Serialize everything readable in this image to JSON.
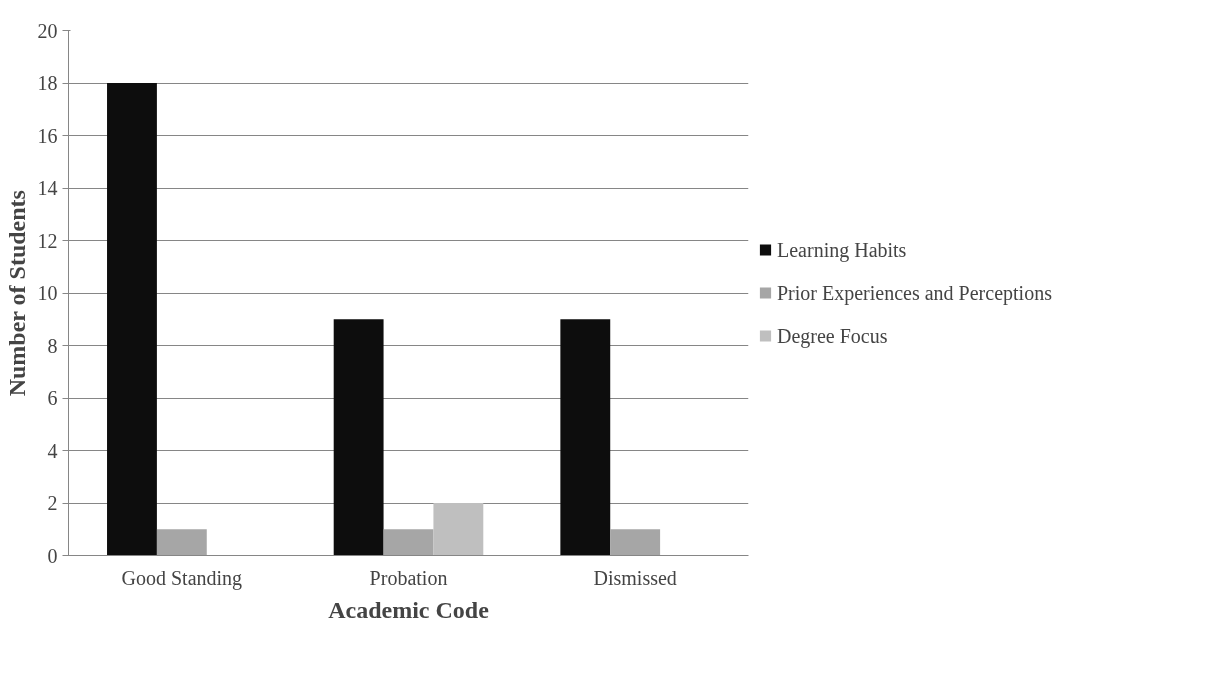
{
  "chart_data": {
    "type": "bar",
    "xlabel": "Academic Code",
    "ylabel": "Number of Students",
    "categories": [
      "Good Standing",
      "Probation",
      "Dismissed"
    ],
    "series": [
      {
        "name": "Learning Habits",
        "color": "#0d0d0d",
        "values": [
          18,
          9,
          9
        ]
      },
      {
        "name": "Prior Experiences and Perceptions",
        "color": "#a6a6a6",
        "values": [
          1,
          1,
          1
        ]
      },
      {
        "name": "Degree Focus",
        "color": "#bfbfbf",
        "values": [
          0,
          2,
          0
        ]
      }
    ],
    "ylim": [
      0,
      20
    ],
    "yticks": [
      0,
      2,
      4,
      6,
      8,
      10,
      12,
      14,
      16,
      18,
      20
    ],
    "grid": "y",
    "legend": "right"
  }
}
